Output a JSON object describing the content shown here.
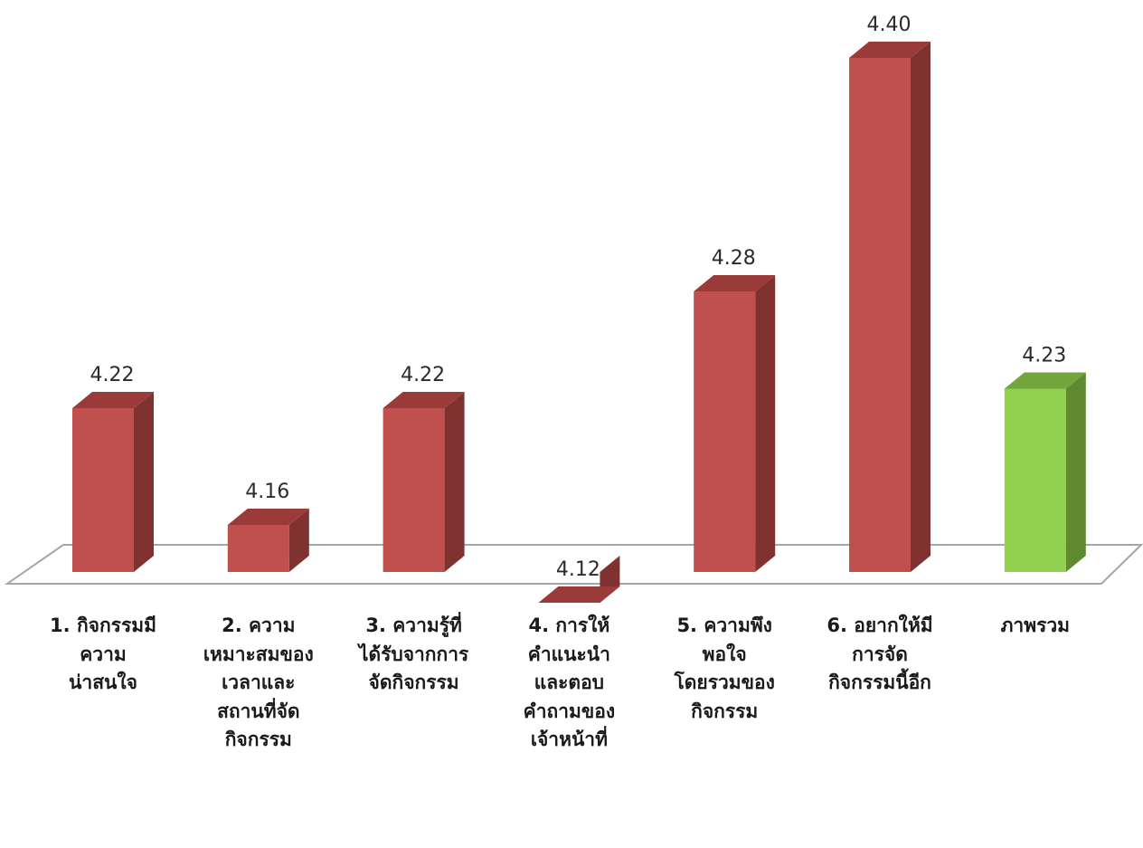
{
  "chart_data": {
    "type": "bar",
    "categories": [
      [
        "1.  กิจกรรมมี",
        "ความ",
        "น่าสนใจ"
      ],
      [
        "2.  ความ",
        "เหมาะสมของ",
        "เวลาและ",
        "สถานที่จัด",
        "กิจกรรม"
      ],
      [
        "3.  ความรู้ที่",
        "ได้รับจากการ",
        "จัดกิจกรรม"
      ],
      [
        "4.  การให้",
        "คำแนะนำ",
        "และตอบ",
        "คำถามของ",
        "เจ้าหน้าที่"
      ],
      [
        "5.  ความพึง",
        "พอใจ",
        "โดยรวมของ",
        "กิจกรรม"
      ],
      [
        "6. อยากให้มี",
        "การจัด",
        "กิจกรรมนี้อีก"
      ],
      [
        "ภาพรวม"
      ]
    ],
    "values": [
      4.22,
      4.16,
      4.22,
      4.12,
      4.28,
      4.4,
      4.23
    ],
    "value_labels": [
      "4.22",
      "4.16",
      "4.22",
      "4.12",
      "4.28",
      "4.40",
      "4.23"
    ],
    "highlight_index": 6,
    "colors": {
      "bar_front": "#c0504d",
      "bar_side": "#7f3230",
      "bar_top": "#9b3b39",
      "highlight_front": "#92d050",
      "highlight_side": "#5f8a30",
      "highlight_top": "#72a53c",
      "floor_line": "#a6a6a6"
    },
    "grid": false,
    "legend": "none"
  }
}
